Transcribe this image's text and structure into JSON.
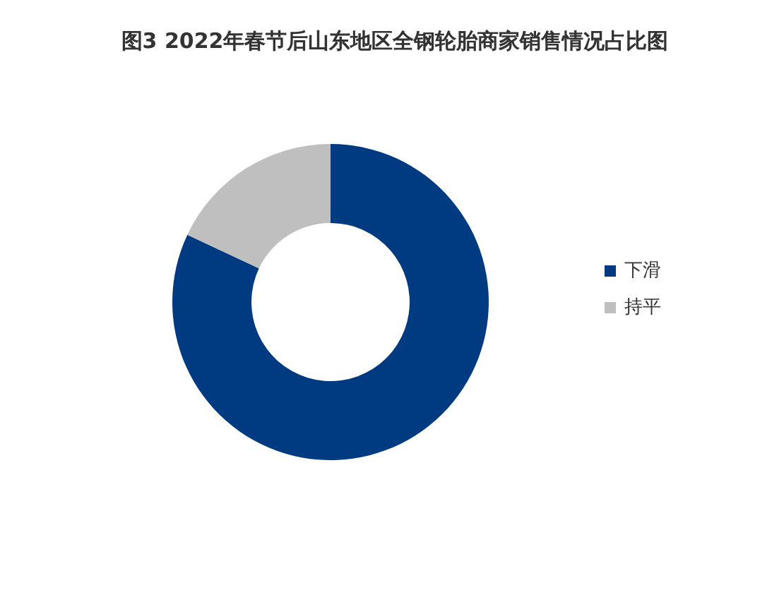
{
  "chart_data": {
    "type": "donut",
    "title": "图3 2022年春节后山东地区全钢轮胎商家销售情况占比图",
    "categories": [
      "下滑",
      "持平"
    ],
    "values": [
      82,
      18
    ],
    "colors": [
      "#003a80",
      "#bfbfbf"
    ],
    "legend": "right"
  }
}
